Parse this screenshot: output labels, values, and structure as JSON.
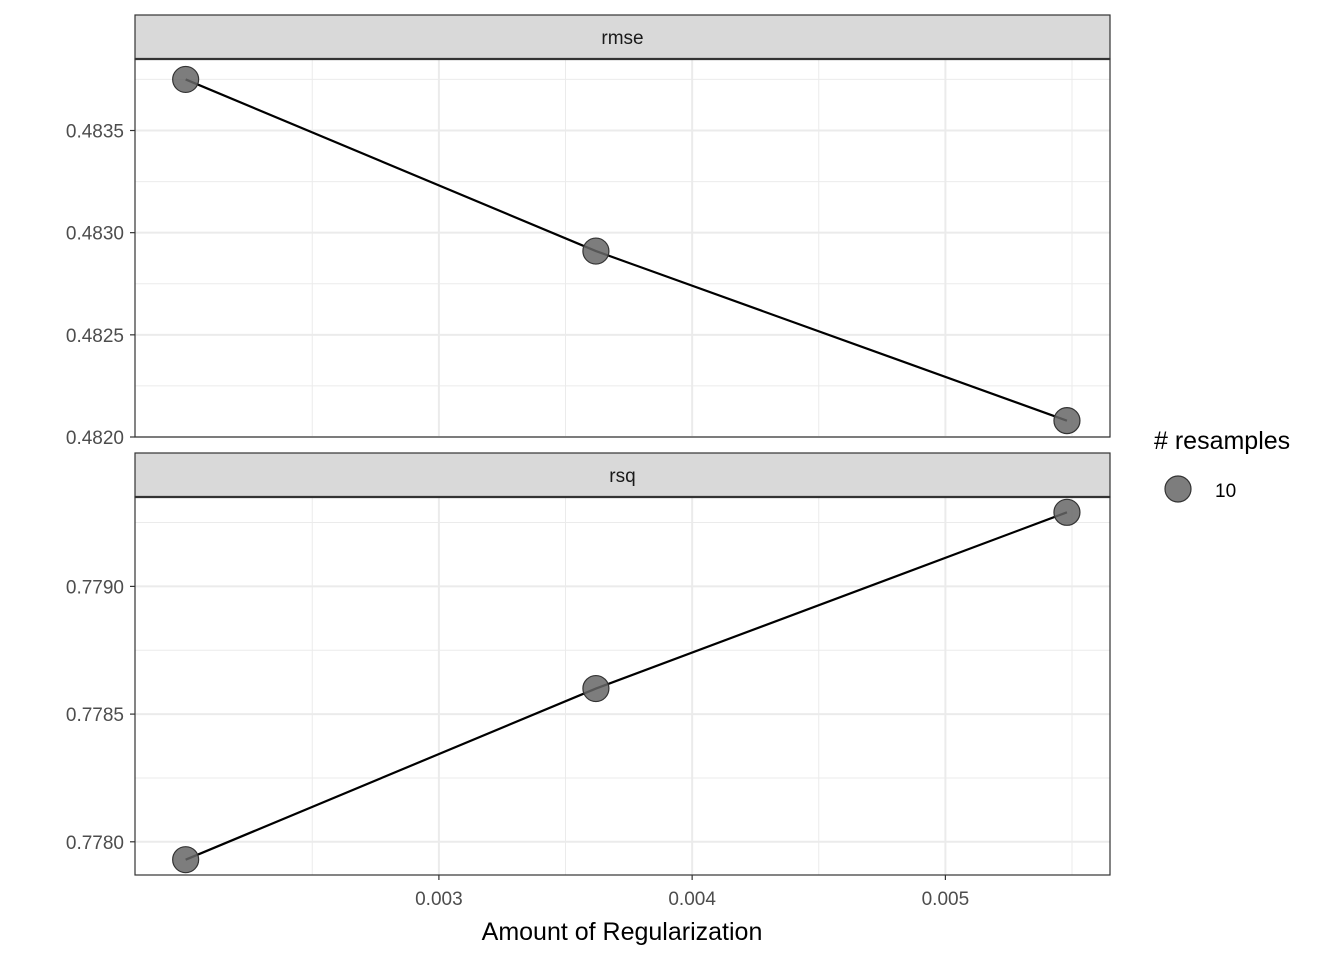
{
  "chart_data": {
    "type": "line",
    "xlabel": "Amount of Regularization",
    "ylabel": "",
    "x_ticks": [
      0.003,
      0.004,
      0.005
    ],
    "x_tick_labels": [
      "0.003",
      "0.004",
      "0.005"
    ],
    "xlim": [
      0.0018,
      0.00565
    ],
    "grid": true,
    "legend": {
      "title": "# resamples",
      "entries": [
        {
          "label": "10"
        }
      ],
      "placement": "right"
    },
    "facets": [
      {
        "strip": "rmse",
        "x": [
          0.002,
          0.00362,
          0.00548
        ],
        "y": [
          0.48375,
          0.48291,
          0.48208
        ],
        "ylim": [
          0.482,
          0.48385
        ],
        "y_ticks": [
          0.482,
          0.4825,
          0.483,
          0.4835
        ],
        "y_tick_labels": [
          "0.4820",
          "0.4825",
          "0.4830",
          "0.4835"
        ]
      },
      {
        "strip": "rsq",
        "x": [
          0.002,
          0.00362,
          0.00548
        ],
        "y": [
          0.77793,
          0.7786,
          0.77929
        ],
        "ylim": [
          0.77787,
          0.77935
        ],
        "y_ticks": [
          0.778,
          0.7785,
          0.779
        ],
        "y_tick_labels": [
          "0.7780",
          "0.7785",
          "0.7790"
        ]
      }
    ],
    "colors": {
      "point_fill": "#666666",
      "point_stroke": "#333333",
      "line": "#000000",
      "strip_bg": "#d9d9d9",
      "grid": "#ebebeb"
    }
  }
}
